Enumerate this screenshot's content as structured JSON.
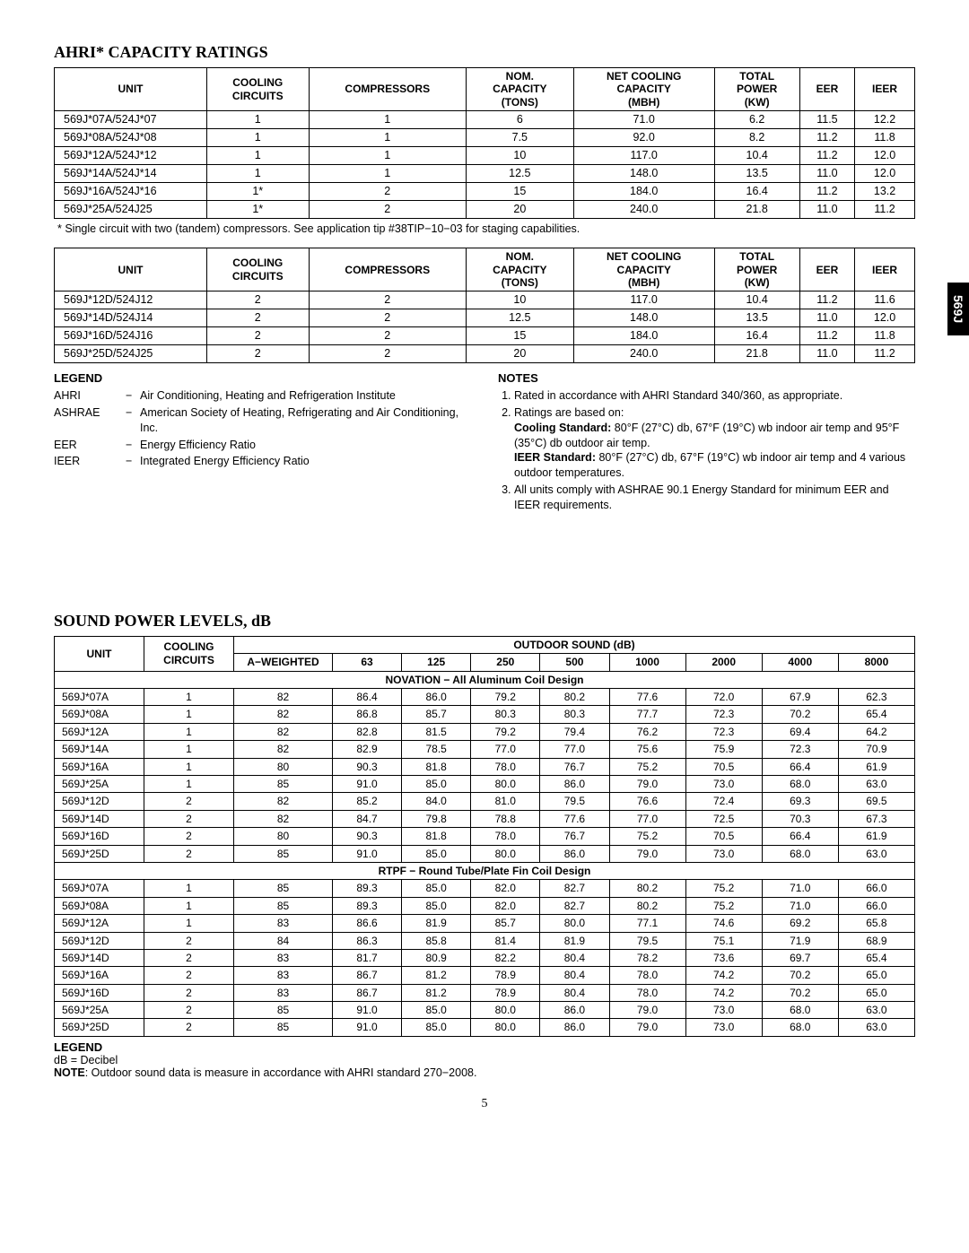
{
  "sideTab": "569J",
  "pageNumber": "5",
  "section1": {
    "title": "AHRI* CAPACITY RATINGS",
    "headers": [
      "Unit",
      "Cooling\nCircuits",
      "Compressors",
      "Nom.\nCapacity\n(Tons)",
      "Net Cooling\nCapacity\n(MBH)",
      "Total\nPower\n(kW)",
      "EER",
      "Ieer"
    ],
    "rowsA": [
      [
        "569J*07A/524J*07",
        "1",
        "1",
        "6",
        "71.0",
        "6.2",
        "11.5",
        "12.2"
      ],
      [
        "569J*08A/524J*08",
        "1",
        "1",
        "7.5",
        "92.0",
        "8.2",
        "11.2",
        "11.8"
      ],
      [
        "569J*12A/524J*12",
        "1",
        "1",
        "10",
        "117.0",
        "10.4",
        "11.2",
        "12.0"
      ],
      [
        "569J*14A/524J*14",
        "1",
        "1",
        "12.5",
        "148.0",
        "13.5",
        "11.0",
        "12.0"
      ],
      [
        "569J*16A/524J*16",
        "1*",
        "2",
        "15",
        "184.0",
        "16.4",
        "11.2",
        "13.2"
      ],
      [
        "569J*25A/524J25",
        "1*",
        "2",
        "20",
        "240.0",
        "21.8",
        "11.0",
        "11.2"
      ]
    ],
    "footnote": "* Single circuit with two (tandem) compressors.  See application tip #38TIP−10−03 for staging capabilities.",
    "rowsB": [
      [
        "569J*12D/524J12",
        "2",
        "2",
        "10",
        "117.0",
        "10.4",
        "11.2",
        "11.6"
      ],
      [
        "569J*14D/524J14",
        "2",
        "2",
        "12.5",
        "148.0",
        "13.5",
        "11.0",
        "12.0"
      ],
      [
        "569J*16D/524J16",
        "2",
        "2",
        "15",
        "184.0",
        "16.4",
        "11.2",
        "11.8"
      ],
      [
        "569J*25D/524J25",
        "2",
        "2",
        "20",
        "240.0",
        "21.8",
        "11.0",
        "11.2"
      ]
    ]
  },
  "legend": {
    "title": "LEGEND",
    "items": [
      {
        "term": "AHRI",
        "def": "Air Conditioning, Heating and Refrigeration Institute"
      },
      {
        "term": "ASHRAE",
        "def": "American Society of Heating, Refrigerating and Air Conditioning, Inc."
      },
      {
        "term": "EER",
        "def": "Energy Efficiency Ratio"
      },
      {
        "term": "IEER",
        "def": "Integrated Energy Efficiency Ratio"
      }
    ]
  },
  "notes": {
    "title": "NOTES",
    "items": [
      "Rated in accordance with AHRI Standard 340/360, as appropriate.",
      "Ratings are based on:<br><b>Cooling Standard:</b> 80°F (27°C) db, 67°F (19°C) wb indoor air temp and 95°F (35°C) db outdoor air temp.<br><b>IEER Standard:</b> 80°F (27°C) db, 67°F (19°C) wb indoor air temp and 4 various outdoor temperatures.",
      "All units comply with ASHRAE 90.1 Energy Standard for minimum EER and IEER requirements."
    ]
  },
  "section2": {
    "title": "SOUND POWER LEVELS, dB",
    "topHeaders": {
      "unit": "UNIT",
      "cooling": "COOLING\nCIRCUITS",
      "outdoor": "OUTDOOR SOUND (dB)"
    },
    "subHeaders": [
      "A−WEIGHTED",
      "63",
      "125",
      "250",
      "500",
      "1000",
      "2000",
      "4000",
      "8000"
    ],
    "group1Title": "NOVATION − All Aluminum Coil Design",
    "group1": [
      [
        "569J*07A",
        "1",
        "82",
        "86.4",
        "86.0",
        "79.2",
        "80.2",
        "77.6",
        "72.0",
        "67.9",
        "62.3"
      ],
      [
        "569J*08A",
        "1",
        "82",
        "86.8",
        "85.7",
        "80.3",
        "80.3",
        "77.7",
        "72.3",
        "70.2",
        "65.4"
      ],
      [
        "569J*12A",
        "1",
        "82",
        "82.8",
        "81.5",
        "79.2",
        "79.4",
        "76.2",
        "72.3",
        "69.4",
        "64.2"
      ],
      [
        "569J*14A",
        "1",
        "82",
        "82.9",
        "78.5",
        "77.0",
        "77.0",
        "75.6",
        "75.9",
        "72.3",
        "70.9"
      ],
      [
        "569J*16A",
        "1",
        "80",
        "90.3",
        "81.8",
        "78.0",
        "76.7",
        "75.2",
        "70.5",
        "66.4",
        "61.9"
      ],
      [
        "569J*25A",
        "1",
        "85",
        "91.0",
        "85.0",
        "80.0",
        "86.0",
        "79.0",
        "73.0",
        "68.0",
        "63.0"
      ],
      [
        "569J*12D",
        "2",
        "82",
        "85.2",
        "84.0",
        "81.0",
        "79.5",
        "76.6",
        "72.4",
        "69.3",
        "69.5"
      ],
      [
        "569J*14D",
        "2",
        "82",
        "84.7",
        "79.8",
        "78.8",
        "77.6",
        "77.0",
        "72.5",
        "70.3",
        "67.3"
      ],
      [
        "569J*16D",
        "2",
        "80",
        "90.3",
        "81.8",
        "78.0",
        "76.7",
        "75.2",
        "70.5",
        "66.4",
        "61.9"
      ],
      [
        "569J*25D",
        "2",
        "85",
        "91.0",
        "85.0",
        "80.0",
        "86.0",
        "79.0",
        "73.0",
        "68.0",
        "63.0"
      ]
    ],
    "group2Title": "RTPF − Round Tube/Plate Fin Coil Design",
    "group2": [
      [
        "569J*07A",
        "1",
        "85",
        "89.3",
        "85.0",
        "82.0",
        "82.7",
        "80.2",
        "75.2",
        "71.0",
        "66.0"
      ],
      [
        "569J*08A",
        "1",
        "85",
        "89.3",
        "85.0",
        "82.0",
        "82.7",
        "80.2",
        "75.2",
        "71.0",
        "66.0"
      ],
      [
        "569J*12A",
        "1",
        "83",
        "86.6",
        "81.9",
        "85.7",
        "80.0",
        "77.1",
        "74.6",
        "69.2",
        "65.8"
      ],
      [
        "569J*12D",
        "2",
        "84",
        "86.3",
        "85.8",
        "81.4",
        "81.9",
        "79.5",
        "75.1",
        "71.9",
        "68.9"
      ],
      [
        "569J*14D",
        "2",
        "83",
        "81.7",
        "80.9",
        "82.2",
        "80.4",
        "78.2",
        "73.6",
        "69.7",
        "65.4"
      ],
      [
        "569J*16A",
        "2",
        "83",
        "86.7",
        "81.2",
        "78.9",
        "80.4",
        "78.0",
        "74.2",
        "70.2",
        "65.0"
      ],
      [
        "569J*16D",
        "2",
        "83",
        "86.7",
        "81.2",
        "78.9",
        "80.4",
        "78.0",
        "74.2",
        "70.2",
        "65.0"
      ],
      [
        "569J*25A",
        "2",
        "85",
        "91.0",
        "85.0",
        "80.0",
        "86.0",
        "79.0",
        "73.0",
        "68.0",
        "63.0"
      ],
      [
        "569J*25D",
        "2",
        "85",
        "91.0",
        "85.0",
        "80.0",
        "86.0",
        "79.0",
        "73.0",
        "68.0",
        "63.0"
      ]
    ]
  },
  "legend2": {
    "title": "LEGEND",
    "line1": "dB = Decibel",
    "note": "<b>NOTE</b>: Outdoor sound data is measure in accordance with AHRI standard 270−2008."
  }
}
